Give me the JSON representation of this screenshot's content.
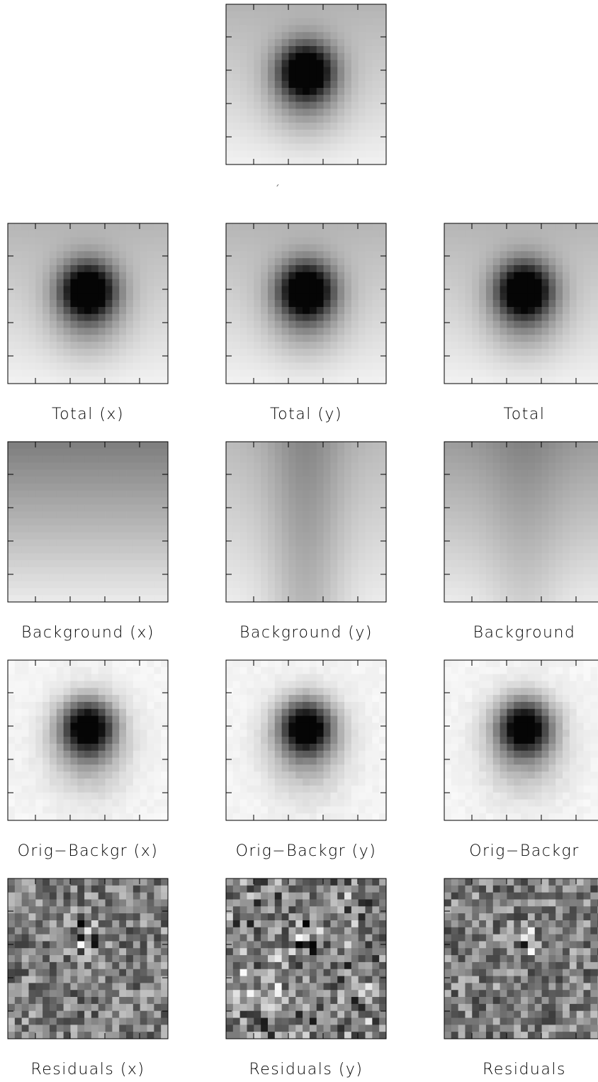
{
  "top_label": "´",
  "rows": [
    [
      "Total (x)",
      "Total (y)",
      "Total"
    ],
    [
      "Background (x)",
      "Background (y)",
      "Background"
    ],
    [
      "Orig−Backgr (x)",
      "Orig−Backgr (y)",
      "Orig−Backgr"
    ],
    [
      "Residuals (x)",
      "Residuals (y)",
      "Residuals"
    ]
  ]
}
